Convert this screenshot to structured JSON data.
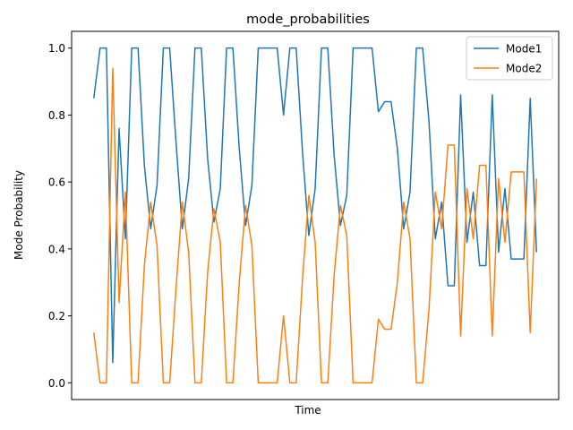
{
  "chart_data": {
    "type": "line",
    "title": "mode_probabilities",
    "xlabel": "Time",
    "ylabel": "Mode Probability",
    "ylim": [
      -0.05,
      1.05
    ],
    "xlim": [
      -3.5,
      73.5
    ],
    "yticks": [
      0.0,
      0.2,
      0.4,
      0.6,
      0.8,
      1.0
    ],
    "ytick_labels": [
      "0.0",
      "0.2",
      "0.4",
      "0.6",
      "0.8",
      "1.0"
    ],
    "xticks_visible": false,
    "grid": false,
    "legend_position": "top-right",
    "x": [
      0,
      1,
      2,
      3,
      4,
      5,
      6,
      7,
      8,
      9,
      10,
      11,
      12,
      13,
      14,
      15,
      16,
      17,
      18,
      19,
      20,
      21,
      22,
      23,
      24,
      25,
      26,
      27,
      28,
      29,
      30,
      31,
      32,
      33,
      34,
      35,
      36,
      37,
      38,
      39,
      40,
      41,
      42,
      43,
      44,
      45,
      46,
      47,
      48,
      49,
      50,
      51,
      52,
      53,
      54,
      55,
      56,
      57,
      58,
      59,
      60,
      61,
      62,
      63,
      64,
      65,
      66,
      67,
      68,
      69,
      70
    ],
    "series": [
      {
        "name": "Mode1",
        "color": "#1f77b4",
        "values": [
          0.85,
          1.0,
          1.0,
          0.06,
          0.76,
          0.43,
          1.0,
          1.0,
          0.65,
          0.46,
          0.59,
          1.0,
          1.0,
          0.72,
          0.46,
          0.61,
          1.0,
          1.0,
          0.67,
          0.48,
          0.58,
          1.0,
          1.0,
          0.7,
          0.47,
          0.59,
          1.0,
          1.0,
          1.0,
          1.0,
          0.8,
          1.0,
          1.0,
          0.69,
          0.44,
          0.58,
          1.0,
          1.0,
          0.68,
          0.47,
          0.56,
          1.0,
          1.0,
          1.0,
          1.0,
          0.81,
          0.84,
          0.84,
          0.7,
          0.46,
          0.57,
          1.0,
          1.0,
          0.78,
          0.43,
          0.54,
          0.29,
          0.29,
          0.86,
          0.42,
          0.57,
          0.35,
          0.35,
          0.86,
          0.39,
          0.58,
          0.37,
          0.37,
          0.37,
          0.85,
          0.39
        ]
      },
      {
        "name": "Mode2",
        "color": "#ff7f0e",
        "values": [
          0.15,
          0.0,
          0.0,
          0.94,
          0.24,
          0.57,
          0.0,
          0.0,
          0.35,
          0.54,
          0.41,
          0.0,
          0.0,
          0.28,
          0.54,
          0.39,
          0.0,
          0.0,
          0.33,
          0.52,
          0.42,
          0.0,
          0.0,
          0.3,
          0.53,
          0.41,
          0.0,
          0.0,
          0.0,
          0.0,
          0.2,
          0.0,
          0.0,
          0.31,
          0.56,
          0.42,
          0.0,
          0.0,
          0.32,
          0.53,
          0.44,
          0.0,
          0.0,
          0.0,
          0.0,
          0.19,
          0.16,
          0.16,
          0.3,
          0.54,
          0.43,
          0.0,
          0.0,
          0.22,
          0.57,
          0.46,
          0.71,
          0.71,
          0.14,
          0.58,
          0.43,
          0.65,
          0.65,
          0.14,
          0.61,
          0.42,
          0.63,
          0.63,
          0.63,
          0.15,
          0.61
        ]
      }
    ]
  }
}
